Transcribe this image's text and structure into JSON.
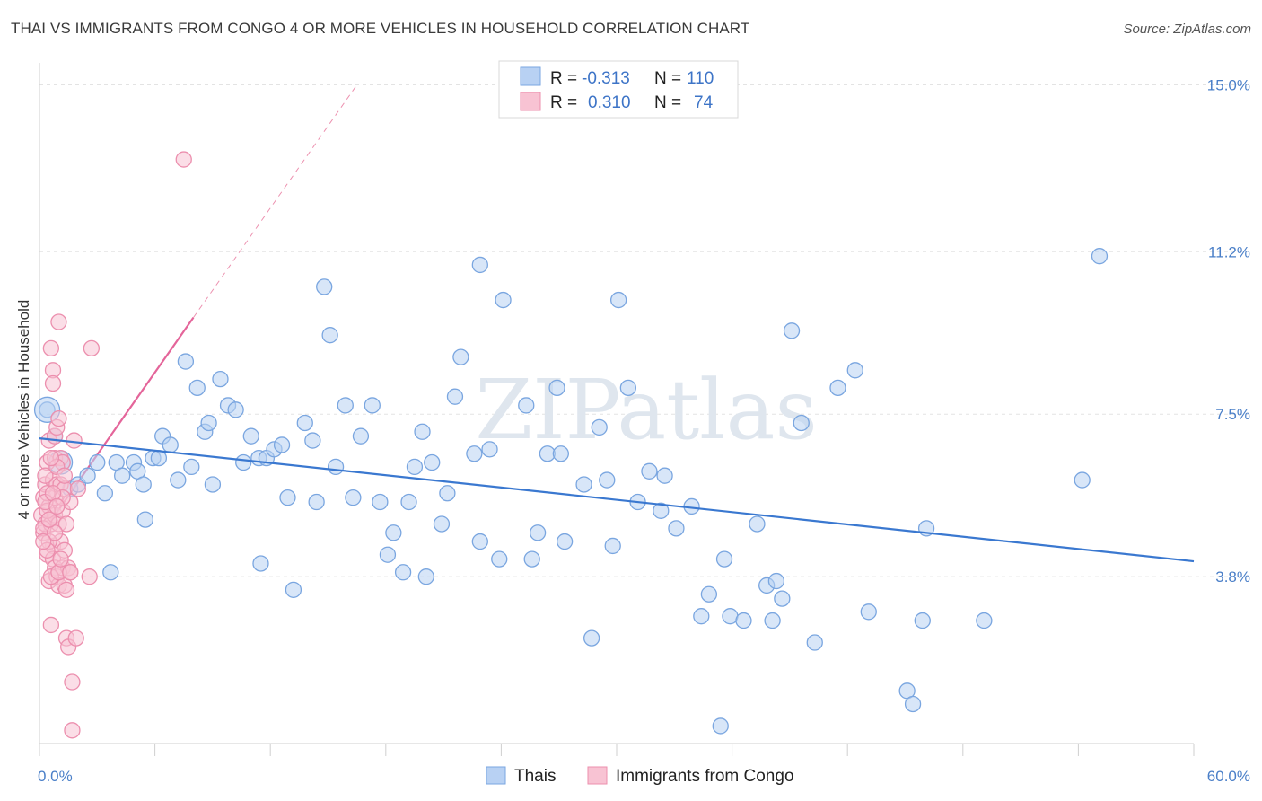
{
  "title": "THAI VS IMMIGRANTS FROM CONGO 4 OR MORE VEHICLES IN HOUSEHOLD CORRELATION CHART",
  "source": "Source: ZipAtlas.com",
  "watermark": "ZIPatlas",
  "chart_data": {
    "type": "scatter",
    "ylabel": "4 or more Vehicles in Household",
    "xlim": [
      0,
      60
    ],
    "ylim": [
      0,
      15.5
    ],
    "x_tick_labels": [
      "0.0%",
      "60.0%"
    ],
    "y_ticks": [
      3.8,
      7.5,
      11.2,
      15.0
    ],
    "y_tick_labels": [
      "3.8%",
      "7.5%",
      "11.2%",
      "15.0%"
    ],
    "grid": true,
    "legend_position": "top-center",
    "legend": {
      "rows": [
        {
          "r_label": "R =",
          "r_value": "-0.313",
          "n_label": "N =",
          "n_value": "110"
        },
        {
          "r_label": "R =",
          "r_value": "0.310",
          "n_label": "N =",
          "n_value": "74"
        }
      ]
    },
    "bottom_legend": [
      "Thais",
      "Immigrants from Congo"
    ],
    "colors": {
      "thais_fill": "#b8d1f3",
      "thais_stroke": "#7aa6e0",
      "thais_line": "#3a78d0",
      "congo_fill": "#f8c3d3",
      "congo_stroke": "#ec8fae",
      "congo_line": "#e4659a"
    },
    "series": [
      {
        "name": "Thais",
        "trend": {
          "x0": 0,
          "y0": 6.95,
          "x1": 60,
          "y1": 4.15
        },
        "points": [
          [
            0.4,
            7.6
          ],
          [
            0.8,
            7.0
          ],
          [
            1.2,
            6.4
          ],
          [
            1.6,
            5.8
          ],
          [
            2.0,
            5.9
          ],
          [
            2.5,
            6.1
          ],
          [
            3.0,
            6.4
          ],
          [
            3.4,
            5.7
          ],
          [
            3.7,
            3.9
          ],
          [
            4.0,
            6.4
          ],
          [
            4.3,
            6.1
          ],
          [
            4.9,
            6.4
          ],
          [
            5.1,
            6.2
          ],
          [
            5.4,
            5.9
          ],
          [
            5.5,
            5.1
          ],
          [
            5.9,
            6.5
          ],
          [
            6.2,
            6.5
          ],
          [
            6.4,
            7.0
          ],
          [
            6.8,
            6.8
          ],
          [
            7.2,
            6.0
          ],
          [
            7.6,
            8.7
          ],
          [
            7.9,
            6.3
          ],
          [
            8.2,
            8.1
          ],
          [
            8.6,
            7.1
          ],
          [
            9.0,
            5.9
          ],
          [
            9.4,
            8.3
          ],
          [
            9.8,
            7.7
          ],
          [
            10.2,
            7.6
          ],
          [
            10.6,
            6.4
          ],
          [
            11.0,
            7.0
          ],
          [
            11.4,
            6.5
          ],
          [
            11.8,
            6.5
          ],
          [
            12.2,
            6.7
          ],
          [
            12.6,
            6.8
          ],
          [
            12.9,
            5.6
          ],
          [
            13.2,
            3.5
          ],
          [
            13.8,
            7.3
          ],
          [
            14.4,
            5.5
          ],
          [
            14.8,
            10.4
          ],
          [
            15.1,
            9.3
          ],
          [
            15.4,
            6.3
          ],
          [
            15.9,
            7.7
          ],
          [
            16.3,
            5.6
          ],
          [
            16.7,
            7.0
          ],
          [
            17.3,
            7.7
          ],
          [
            17.7,
            5.5
          ],
          [
            18.1,
            4.3
          ],
          [
            18.4,
            4.8
          ],
          [
            18.9,
            3.9
          ],
          [
            19.2,
            5.5
          ],
          [
            19.5,
            6.3
          ],
          [
            19.9,
            7.1
          ],
          [
            20.4,
            6.4
          ],
          [
            20.9,
            5.0
          ],
          [
            21.2,
            5.7
          ],
          [
            21.6,
            7.9
          ],
          [
            21.9,
            8.8
          ],
          [
            22.6,
            6.6
          ],
          [
            22.9,
            4.6
          ],
          [
            23.4,
            6.7
          ],
          [
            23.9,
            4.2
          ],
          [
            24.1,
            10.1
          ],
          [
            25.3,
            7.7
          ],
          [
            25.6,
            4.2
          ],
          [
            25.9,
            4.8
          ],
          [
            26.4,
            6.6
          ],
          [
            26.9,
            8.1
          ],
          [
            27.3,
            4.6
          ],
          [
            28.3,
            5.9
          ],
          [
            28.7,
            2.4
          ],
          [
            29.1,
            7.2
          ],
          [
            29.5,
            6.0
          ],
          [
            29.8,
            4.5
          ],
          [
            30.6,
            8.1
          ],
          [
            31.1,
            5.5
          ],
          [
            31.7,
            6.2
          ],
          [
            32.5,
            6.1
          ],
          [
            32.3,
            5.3
          ],
          [
            33.1,
            4.9
          ],
          [
            33.9,
            5.4
          ],
          [
            34.4,
            2.9
          ],
          [
            34.8,
            3.4
          ],
          [
            35.4,
            0.4
          ],
          [
            35.6,
            4.2
          ],
          [
            35.9,
            2.9
          ],
          [
            36.6,
            2.8
          ],
          [
            37.3,
            5.0
          ],
          [
            37.8,
            3.6
          ],
          [
            38.1,
            2.8
          ],
          [
            38.3,
            3.7
          ],
          [
            38.6,
            3.3
          ],
          [
            39.1,
            9.4
          ],
          [
            39.6,
            7.3
          ],
          [
            40.3,
            2.3
          ],
          [
            41.5,
            8.1
          ],
          [
            42.4,
            8.5
          ],
          [
            43.1,
            3.0
          ],
          [
            45.1,
            1.2
          ],
          [
            45.4,
            0.9
          ],
          [
            45.9,
            2.8
          ],
          [
            46.1,
            4.9
          ],
          [
            49.1,
            2.8
          ],
          [
            54.2,
            6.0
          ],
          [
            55.1,
            11.1
          ],
          [
            22.9,
            10.9
          ],
          [
            30.1,
            10.1
          ],
          [
            14.2,
            6.9
          ],
          [
            27.1,
            6.6
          ],
          [
            11.5,
            4.1
          ],
          [
            20.1,
            3.8
          ],
          [
            8.8,
            7.3
          ]
        ]
      },
      {
        "name": "Immigrants from Congo",
        "trend": {
          "x0": 0,
          "y0": 4.7,
          "x1": 8,
          "y1": 9.7,
          "dash_x1": 16.5,
          "dash_y1": 15.0
        },
        "points": [
          [
            0.1,
            5.2
          ],
          [
            0.2,
            5.6
          ],
          [
            0.2,
            4.8
          ],
          [
            0.3,
            5.9
          ],
          [
            0.3,
            5.0
          ],
          [
            0.4,
            6.4
          ],
          [
            0.4,
            4.3
          ],
          [
            0.5,
            6.9
          ],
          [
            0.5,
            5.4
          ],
          [
            0.5,
            3.7
          ],
          [
            0.6,
            5.0
          ],
          [
            0.6,
            9.0
          ],
          [
            0.6,
            2.7
          ],
          [
            0.7,
            8.5
          ],
          [
            0.7,
            8.2
          ],
          [
            0.7,
            6.0
          ],
          [
            0.7,
            4.5
          ],
          [
            0.7,
            4.2
          ],
          [
            0.8,
            7.0
          ],
          [
            0.8,
            6.5
          ],
          [
            0.8,
            5.2
          ],
          [
            0.8,
            5.6
          ],
          [
            0.8,
            4.0
          ],
          [
            0.9,
            7.2
          ],
          [
            0.9,
            5.9
          ],
          [
            0.9,
            3.8
          ],
          [
            1.0,
            9.6
          ],
          [
            1.0,
            7.4
          ],
          [
            1.0,
            5.0
          ],
          [
            1.0,
            3.6
          ],
          [
            1.1,
            6.5
          ],
          [
            1.1,
            5.9
          ],
          [
            1.1,
            4.6
          ],
          [
            1.2,
            6.4
          ],
          [
            1.2,
            5.3
          ],
          [
            1.2,
            4.0
          ],
          [
            1.3,
            5.8
          ],
          [
            1.3,
            4.4
          ],
          [
            1.3,
            3.6
          ],
          [
            1.4,
            2.4
          ],
          [
            1.4,
            5.0
          ],
          [
            1.5,
            4.0
          ],
          [
            1.5,
            2.2
          ],
          [
            1.6,
            3.9
          ],
          [
            1.6,
            5.5
          ],
          [
            1.7,
            1.4
          ],
          [
            1.7,
            0.3
          ],
          [
            1.8,
            6.9
          ],
          [
            1.9,
            2.4
          ],
          [
            2.0,
            5.8
          ],
          [
            0.3,
            6.1
          ],
          [
            0.4,
            5.7
          ],
          [
            0.5,
            4.6
          ],
          [
            0.6,
            3.8
          ],
          [
            0.2,
            4.9
          ],
          [
            0.4,
            5.3
          ],
          [
            0.9,
            6.3
          ],
          [
            1.2,
            5.6
          ],
          [
            2.6,
            3.8
          ],
          [
            2.7,
            9.0
          ],
          [
            7.5,
            13.3
          ],
          [
            0.6,
            6.5
          ],
          [
            1.0,
            3.9
          ],
          [
            0.3,
            5.5
          ],
          [
            0.8,
            4.8
          ],
          [
            1.4,
            3.5
          ],
          [
            0.5,
            5.1
          ],
          [
            0.7,
            5.7
          ],
          [
            1.1,
            4.2
          ],
          [
            1.6,
            3.9
          ],
          [
            0.4,
            4.4
          ],
          [
            1.3,
            6.1
          ],
          [
            0.9,
            5.4
          ],
          [
            0.2,
            4.6
          ]
        ]
      }
    ]
  }
}
